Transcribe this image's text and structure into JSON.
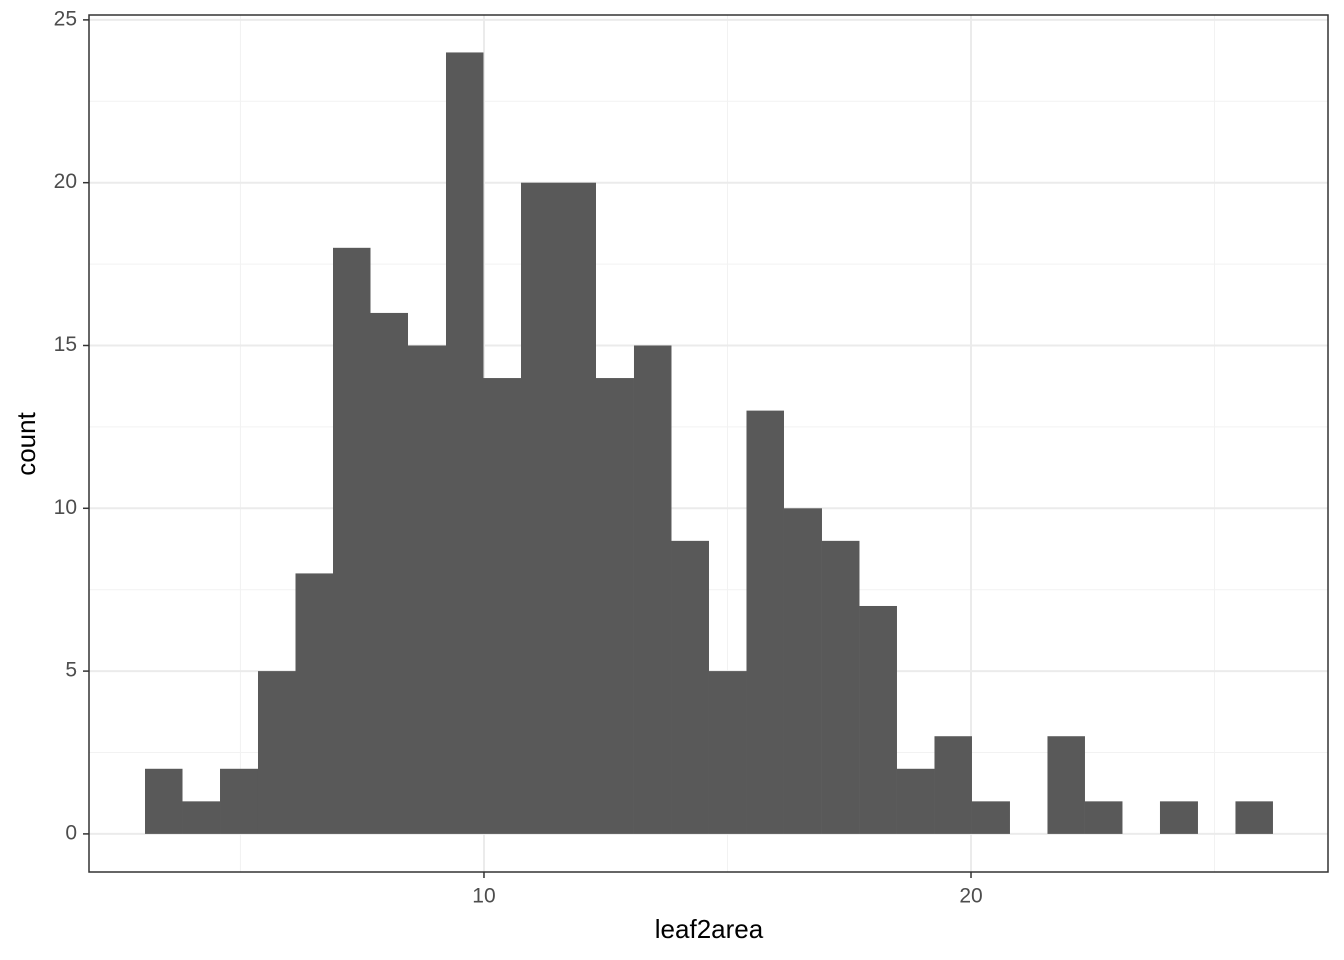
{
  "chart_data": {
    "type": "histogram",
    "x_label": "leaf2area",
    "y_label": "count",
    "bins": [
      3.04,
      3.81,
      4.58,
      5.36,
      6.13,
      6.9,
      7.67,
      8.44,
      9.22,
      9.99,
      10.76,
      11.53,
      12.3,
      13.08,
      13.85,
      14.62,
      15.39,
      16.16,
      16.94,
      17.71,
      18.48,
      19.25,
      20.02,
      20.8,
      21.57,
      22.34,
      23.11,
      23.88,
      24.66,
      25.43,
      26.2
    ],
    "values": [
      2,
      1,
      2,
      5,
      8,
      18,
      16,
      15,
      24,
      14,
      20,
      20,
      14,
      15,
      9,
      5,
      13,
      10,
      9,
      7,
      2,
      3,
      1,
      0,
      3,
      1,
      0,
      1,
      0,
      1
    ],
    "color": "#595959",
    "xlim": [
      1.89,
      27.33
    ],
    "xticks": [
      10,
      20
    ],
    "ylim": [
      -1.17,
      25.15
    ],
    "yticks": [
      0,
      5,
      10,
      15,
      20,
      25
    ],
    "grid": true
  }
}
